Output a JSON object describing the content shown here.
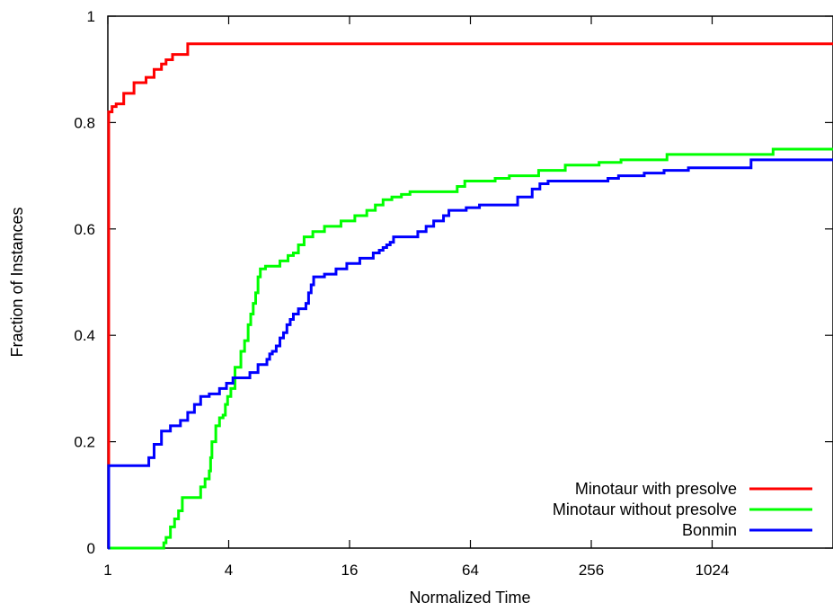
{
  "chart_data": {
    "type": "line",
    "title": "",
    "xlabel": "Normalized Time",
    "ylabel": "Fraction of Instances",
    "xscale": "log2",
    "xlim": [
      1,
      4096
    ],
    "ylim": [
      0,
      1
    ],
    "xticks": [
      {
        "value": 1,
        "label": "1"
      },
      {
        "value": 4,
        "label": "4"
      },
      {
        "value": 16,
        "label": "16"
      },
      {
        "value": 64,
        "label": "64"
      },
      {
        "value": 256,
        "label": "256"
      },
      {
        "value": 1024,
        "label": "1024"
      }
    ],
    "yticks": [
      {
        "value": 0,
        "label": "0"
      },
      {
        "value": 0.2,
        "label": "0.2"
      },
      {
        "value": 0.4,
        "label": "0.4"
      },
      {
        "value": 0.6,
        "label": "0.6"
      },
      {
        "value": 0.8,
        "label": "0.8"
      },
      {
        "value": 1,
        "label": "1"
      }
    ],
    "grid": false,
    "legend_position": "bottom-right",
    "series": [
      {
        "name": "Minotaur with presolve",
        "color": "#ff0000",
        "step": true,
        "x": [
          1,
          1.01,
          1.05,
          1.1,
          1.2,
          1.35,
          1.55,
          1.7,
          1.85,
          1.95,
          2.1,
          2.5,
          4096
        ],
        "y": [
          0,
          0.82,
          0.83,
          0.835,
          0.855,
          0.875,
          0.885,
          0.9,
          0.91,
          0.918,
          0.928,
          0.948,
          0.948
        ]
      },
      {
        "name": "Minotaur without presolve",
        "color": "#00ff00",
        "step": true,
        "x": [
          1,
          1.85,
          1.9,
          1.95,
          2.05,
          2.15,
          2.25,
          2.35,
          2.55,
          2.9,
          3.05,
          3.2,
          3.25,
          3.3,
          3.45,
          3.6,
          3.75,
          3.85,
          3.95,
          4.1,
          4.3,
          4.6,
          4.8,
          5.0,
          5.15,
          5.3,
          5.45,
          5.6,
          5.75,
          6.1,
          7.2,
          7.9,
          8.4,
          8.9,
          9.5,
          10.5,
          12.0,
          14.5,
          17.0,
          19.5,
          21.5,
          23.5,
          26.0,
          29.0,
          32.0,
          55.0,
          60.0,
          85.0,
          100.0,
          140.0,
          190.0,
          280.0,
          360.0,
          610.0,
          2060.0,
          4096
        ],
        "y": [
          0,
          0,
          0.01,
          0.02,
          0.04,
          0.055,
          0.07,
          0.095,
          0.095,
          0.115,
          0.13,
          0.145,
          0.17,
          0.2,
          0.23,
          0.245,
          0.25,
          0.27,
          0.285,
          0.3,
          0.34,
          0.37,
          0.39,
          0.42,
          0.44,
          0.46,
          0.48,
          0.51,
          0.525,
          0.53,
          0.54,
          0.55,
          0.555,
          0.57,
          0.585,
          0.595,
          0.605,
          0.615,
          0.625,
          0.635,
          0.645,
          0.655,
          0.66,
          0.665,
          0.67,
          0.68,
          0.69,
          0.695,
          0.7,
          0.71,
          0.72,
          0.725,
          0.73,
          0.74,
          0.75,
          0.75
        ]
      },
      {
        "name": "Bonmin",
        "color": "#0000ff",
        "step": true,
        "x": [
          1,
          1.01,
          1.6,
          1.7,
          1.85,
          2.05,
          2.3,
          2.5,
          2.7,
          2.9,
          3.2,
          3.6,
          3.9,
          4.2,
          5.1,
          5.6,
          6.2,
          6.4,
          6.6,
          6.9,
          7.2,
          7.5,
          7.8,
          8.1,
          8.4,
          8.9,
          9.7,
          10.0,
          10.3,
          10.6,
          12.0,
          13.7,
          15.5,
          18.0,
          21.0,
          22.5,
          23.5,
          24.5,
          25.5,
          26.5,
          35.0,
          38.5,
          42.0,
          47.0,
          50.0,
          61.0,
          71.0,
          110.0,
          130.0,
          142.0,
          156.0,
          172.0,
          275.0,
          310.0,
          350.0,
          470.0,
          590.0,
          780.0,
          1600.0,
          4096
        ],
        "y": [
          0,
          0.155,
          0.17,
          0.195,
          0.22,
          0.23,
          0.24,
          0.255,
          0.27,
          0.285,
          0.29,
          0.3,
          0.31,
          0.32,
          0.33,
          0.345,
          0.355,
          0.365,
          0.37,
          0.38,
          0.395,
          0.405,
          0.42,
          0.43,
          0.44,
          0.45,
          0.46,
          0.48,
          0.495,
          0.51,
          0.515,
          0.525,
          0.535,
          0.545,
          0.555,
          0.56,
          0.565,
          0.57,
          0.575,
          0.585,
          0.595,
          0.605,
          0.615,
          0.625,
          0.635,
          0.64,
          0.645,
          0.66,
          0.675,
          0.685,
          0.69,
          0.69,
          0.69,
          0.695,
          0.7,
          0.705,
          0.71,
          0.715,
          0.73,
          0.73
        ]
      }
    ]
  }
}
